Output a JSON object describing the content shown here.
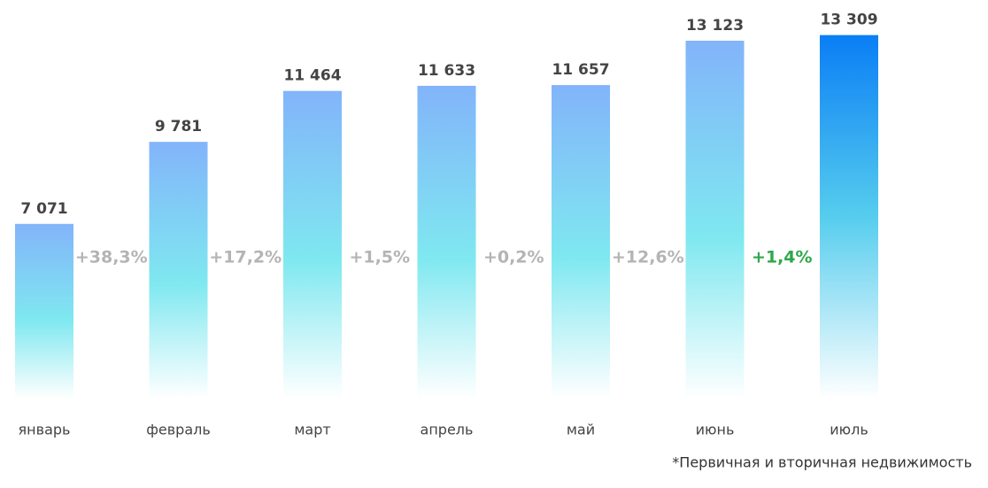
{
  "chart_data": {
    "type": "bar",
    "categories": [
      "январь",
      "февраль",
      "март",
      "апрель",
      "май",
      "июнь",
      "июль"
    ],
    "values": [
      7071,
      9781,
      11464,
      11633,
      11657,
      13123,
      13309
    ],
    "value_labels": [
      "7 071",
      "9 781",
      "11 464",
      "11 633",
      "11 657",
      "13 123",
      "13 309"
    ],
    "colors": [
      "#82b4fa",
      "#82b4fa",
      "#82b4fa",
      "#82b4fa",
      "#82b4fa",
      "#82b4fa",
      "#0a7ef5"
    ],
    "ylim": [
      1300,
      14000
    ],
    "annotations": [
      "+38,3%",
      "+17,2%",
      "+1,5%",
      "+0,2%",
      "+12,6%",
      "+1,4%"
    ],
    "annotation_colors": [
      "#b4b4b4",
      "#b4b4b4",
      "#b4b4b4",
      "#b4b4b4",
      "#b4b4b4",
      "#2ea84a"
    ],
    "footnote": "*Первичная и вторичная недвижимость"
  }
}
